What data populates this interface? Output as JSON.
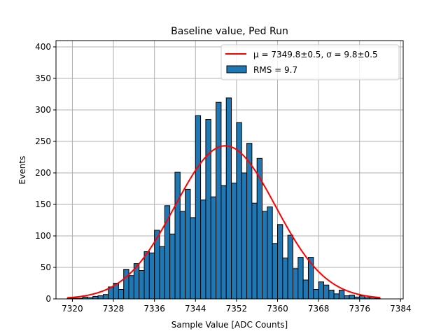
{
  "chart_data": {
    "type": "bar",
    "title": "Baseline value, Ped Run",
    "xlabel": "Sample Value [ADC Counts]",
    "ylabel": "Events",
    "xlim": [
      7316.8,
      7384.5
    ],
    "ylim": [
      0,
      410
    ],
    "grid": true,
    "legend_position": "top-right",
    "x_ticks": [
      7320,
      7328,
      7336,
      7344,
      7352,
      7360,
      7368,
      7376,
      7384
    ],
    "y_ticks": [
      0,
      50,
      100,
      150,
      200,
      250,
      300,
      350,
      400
    ],
    "bin_width": 1,
    "series": [
      {
        "name": "RMS = 9.7",
        "kind": "histogram",
        "color": "#1f77b4",
        "edge_color": "#000000",
        "bin_starts": [
          7319,
          7320,
          7321,
          7322,
          7323,
          7324,
          7325,
          7326,
          7327,
          7328,
          7329,
          7330,
          7331,
          7332,
          7333,
          7334,
          7335,
          7336,
          7337,
          7338,
          7339,
          7340,
          7341,
          7342,
          7343,
          7344,
          7345,
          7346,
          7347,
          7348,
          7349,
          7350,
          7351,
          7352,
          7353,
          7354,
          7355,
          7356,
          7357,
          7358,
          7359,
          7360,
          7361,
          7362,
          7363,
          7364,
          7365,
          7366,
          7367,
          7368,
          7369,
          7370,
          7371,
          7372,
          7373,
          7374,
          7375,
          7376,
          7377,
          7378,
          7379
        ],
        "values": [
          1,
          1,
          1,
          3,
          2,
          4,
          5,
          7,
          19,
          25,
          15,
          47,
          37,
          56,
          45,
          75,
          73,
          109,
          83,
          148,
          103,
          201,
          139,
          174,
          129,
          291,
          157,
          285,
          162,
          312,
          180,
          319,
          184,
          280,
          200,
          247,
          152,
          223,
          139,
          146,
          88,
          118,
          65,
          101,
          48,
          66,
          30,
          66,
          15,
          27,
          22,
          14,
          8,
          14,
          5,
          6,
          3,
          5,
          2,
          3,
          1
        ]
      },
      {
        "name": "μ = 7349.8±0.5, σ = 9.8±0.5",
        "kind": "gaussian_fit",
        "color": "#ff0000",
        "mean": 7349.8,
        "sigma": 9.8,
        "amplitude": 243,
        "x_range": [
          7319,
          7380
        ]
      }
    ]
  }
}
